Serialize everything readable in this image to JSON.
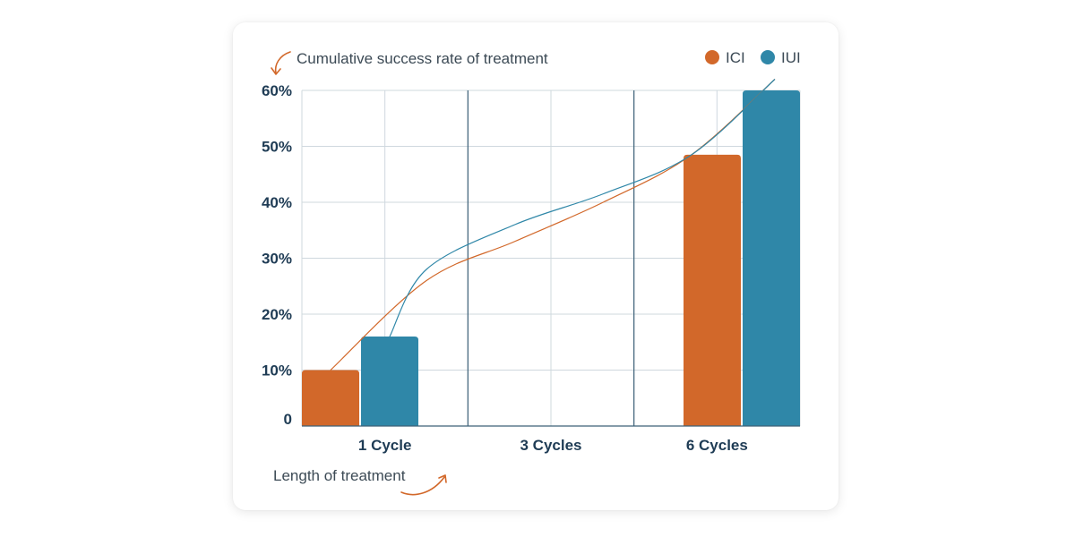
{
  "colors": {
    "ici": "#d2682a",
    "iui": "#2f87a8",
    "grid": "#cfd8de",
    "divider": "#3d6178",
    "arrow": "#d2682a"
  },
  "chart_data": {
    "type": "bar",
    "ylabel": "Cumulative success rate of treatment",
    "xlabel": "Length of treatment",
    "categories": [
      "1 Cycle",
      "3 Cycles",
      "6 Cycles"
    ],
    "ylim": [
      0,
      60
    ],
    "yticks": [
      0,
      10,
      20,
      30,
      40,
      50,
      60
    ],
    "ytick_labels": [
      "0",
      "10%",
      "20%",
      "30%",
      "40%",
      "50%",
      "60%"
    ],
    "series": [
      {
        "name": "ICI",
        "values": [
          10,
          null,
          48.5
        ]
      },
      {
        "name": "IUI",
        "values": [
          16,
          null,
          62
        ]
      }
    ],
    "trend_lines": [
      {
        "series": "ICI",
        "points": [
          [
            1,
            10
          ],
          [
            2,
            26
          ],
          [
            3,
            33
          ],
          [
            4,
            40
          ],
          [
            5,
            48.5
          ],
          [
            6,
            62
          ]
        ]
      },
      {
        "series": "IUI",
        "points": [
          [
            1,
            16
          ],
          [
            2,
            28
          ],
          [
            3,
            36
          ],
          [
            4,
            41.5
          ],
          [
            5,
            48.5
          ],
          [
            6,
            62
          ]
        ]
      }
    ],
    "grid": true,
    "legend_position": "top-right"
  }
}
